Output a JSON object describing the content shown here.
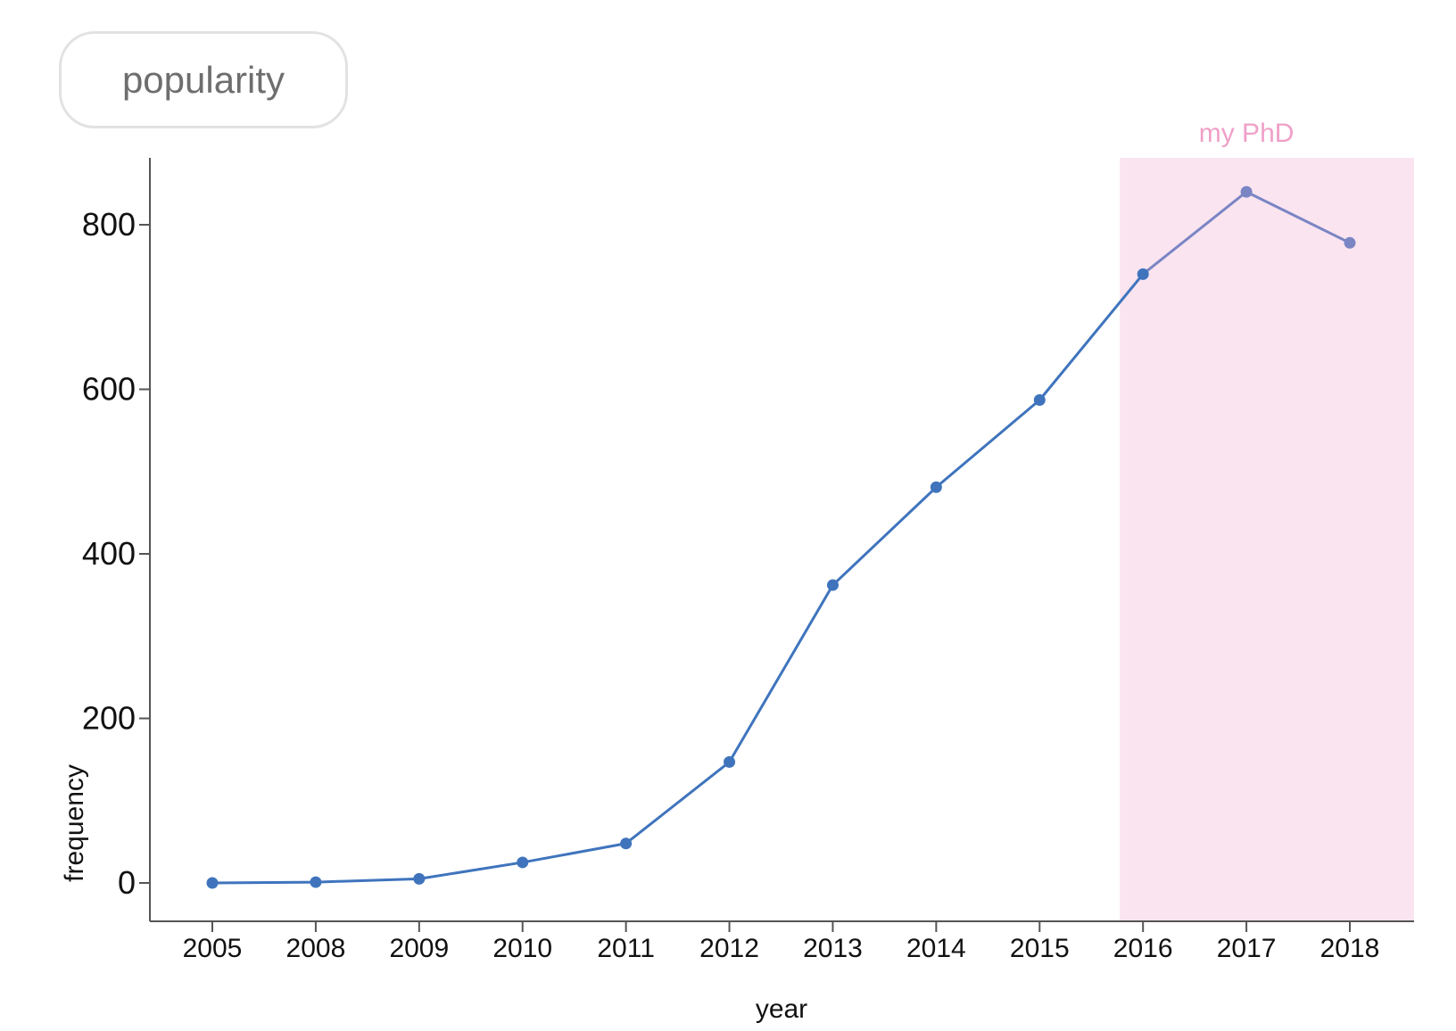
{
  "title": "popularity",
  "chart_data": {
    "type": "line",
    "categories": [
      "2005",
      "2008",
      "2009",
      "2010",
      "2011",
      "2012",
      "2013",
      "2014",
      "2015",
      "2016",
      "2017",
      "2018"
    ],
    "series": [
      {
        "values": [
          0,
          1,
          5,
          25,
          48,
          147,
          362,
          481,
          587,
          740,
          840,
          778
        ]
      }
    ],
    "xlabel": "year",
    "ylabel": "frequency",
    "yticks": [
      0,
      200,
      400,
      600,
      800
    ],
    "ylim": [
      -45,
      880
    ],
    "grid": false,
    "highlight": {
      "label": "my PhD",
      "from": "2016",
      "to": "2018",
      "fill": "#fae4f0",
      "text_color": "#efa0c8"
    },
    "colors": {
      "line": "#3f74bd",
      "line_highlight": "#7a85c4",
      "axis": "#555555"
    }
  }
}
